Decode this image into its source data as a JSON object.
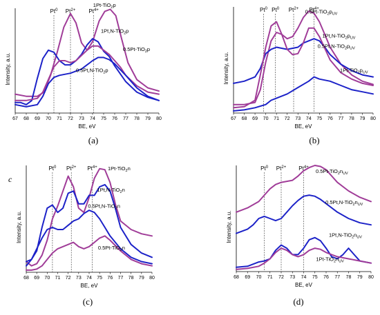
{
  "colors": {
    "magenta": "#a03c98",
    "blue": "#1c22c8"
  },
  "chart_data": [
    {
      "id": "a",
      "panel_label": "(a)",
      "corner_label": "",
      "type": "line",
      "xlabel": "BE, eV",
      "ylabel": "Intensity, a.u.",
      "xlim": [
        67,
        80
      ],
      "ylim": [
        0,
        1
      ],
      "x_reversed": false,
      "x_ticks": [
        "67",
        "68",
        "69",
        "70",
        "71",
        "72",
        "73",
        "74",
        "75",
        "76",
        "77",
        "78",
        "79",
        "80"
      ],
      "ref_lines": [
        {
          "label": "Pt0",
          "x": 70.5
        },
        {
          "label": "Pt2+",
          "x": 72.0
        },
        {
          "label": "Pt4+",
          "x": 74.1
        }
      ],
      "series": [
        {
          "name": "1Pt-TiO2p",
          "color": "magenta",
          "x": [
            67,
            68,
            69,
            69.6,
            70.2,
            70.8,
            71.4,
            72,
            72.5,
            73,
            73.5,
            74,
            74.6,
            75.1,
            75.6,
            76.1,
            76.6,
            77.2,
            78,
            79,
            80
          ],
          "y": [
            0.18,
            0.16,
            0.16,
            0.2,
            0.36,
            0.58,
            0.82,
            0.95,
            0.86,
            0.67,
            0.6,
            0.68,
            0.88,
            0.97,
            0.99,
            0.93,
            0.72,
            0.48,
            0.32,
            0.24,
            0.21
          ]
        },
        {
          "name": "1Pt,N-TiO2p",
          "color": "blue",
          "x": [
            67,
            67.5,
            68,
            68.5,
            69,
            69.5,
            70,
            70.5,
            71,
            71.5,
            72,
            72.5,
            73,
            73.5,
            74,
            74.5,
            75,
            75.5,
            76,
            77,
            78,
            79,
            80
          ],
          "y": [
            0.1,
            0.1,
            0.08,
            0.12,
            0.33,
            0.52,
            0.6,
            0.58,
            0.5,
            0.46,
            0.46,
            0.5,
            0.56,
            0.65,
            0.71,
            0.68,
            0.59,
            0.54,
            0.45,
            0.3,
            0.2,
            0.15,
            0.12
          ]
        },
        {
          "name": "0.5Pt-TiO2p",
          "color": "magenta",
          "x": [
            67,
            68,
            69,
            69.5,
            70,
            70.5,
            71,
            71.5,
            72,
            72.5,
            73,
            73.5,
            74,
            74.5,
            75,
            75.5,
            76,
            76.5,
            77,
            78,
            79,
            80
          ],
          "y": [
            0.12,
            0.12,
            0.14,
            0.2,
            0.32,
            0.44,
            0.5,
            0.5,
            0.48,
            0.5,
            0.55,
            0.6,
            0.64,
            0.64,
            0.6,
            0.56,
            0.5,
            0.44,
            0.36,
            0.26,
            0.2,
            0.18
          ]
        },
        {
          "name": "0.5Pt,N-TiO2p",
          "color": "blue",
          "x": [
            67,
            68,
            69,
            69.5,
            70,
            70.5,
            71,
            72,
            73,
            73.5,
            74,
            74.5,
            75,
            75.5,
            76,
            77,
            78,
            79,
            80
          ],
          "y": [
            0.08,
            0.06,
            0.08,
            0.16,
            0.28,
            0.34,
            0.36,
            0.38,
            0.42,
            0.46,
            0.5,
            0.53,
            0.53,
            0.51,
            0.47,
            0.36,
            0.24,
            0.16,
            0.12
          ]
        }
      ],
      "annotations": [
        {
          "text": "1Pt-TiO2p",
          "x": 76.3,
          "y": 1.0
        },
        {
          "text": "1Pt,N-TiO2p",
          "x": 76.5,
          "y": 0.78
        },
        {
          "text": "0.5Pt-TiO2p",
          "x": 77.0,
          "y": 0.62
        },
        {
          "text": "0.5Pt,N-TiO2p",
          "x": 75.0,
          "y": 0.43
        }
      ]
    },
    {
      "id": "b",
      "panel_label": "(b)",
      "corner_label": "",
      "type": "line",
      "xlabel": "BE, eV",
      "ylabel": "Intensity, a.u.",
      "xlim": [
        67,
        80
      ],
      "ylim": [
        0,
        1
      ],
      "x_reversed": false,
      "x_ticks": [
        "67",
        "68",
        "69",
        "70",
        "71",
        "72",
        "73",
        "74",
        "75",
        "76",
        "77",
        "78",
        "79",
        "80"
      ],
      "ref_lines": [
        {
          "label": "Pt0",
          "x": 69.8
        },
        {
          "label": "Pt0",
          "x": 70.9
        },
        {
          "label": "Pt2+",
          "x": 72.6
        },
        {
          "label": "Pt4+",
          "x": 74.5
        }
      ],
      "series": [
        {
          "name": "0.5Pt-TiO2pUV",
          "color": "magenta",
          "x": [
            67,
            68,
            69,
            69.5,
            70,
            70.5,
            71,
            71.5,
            72,
            72.5,
            73,
            73.5,
            74,
            74.5,
            75,
            75.5,
            76,
            77,
            78,
            79,
            80
          ],
          "y": [
            0.08,
            0.08,
            0.1,
            0.22,
            0.48,
            0.68,
            0.76,
            0.74,
            0.7,
            0.72,
            0.8,
            0.9,
            0.96,
            0.94,
            0.86,
            0.74,
            0.62,
            0.46,
            0.36,
            0.3,
            0.27
          ]
        },
        {
          "name": "1Pt,N-TiO2pUV",
          "color": "blue",
          "x": [
            67,
            68,
            69,
            69.5,
            70,
            70.5,
            71,
            72,
            73,
            73.5,
            74,
            74.5,
            75,
            75.5,
            76,
            77,
            78,
            79,
            80
          ],
          "y": [
            0.28,
            0.3,
            0.34,
            0.42,
            0.56,
            0.6,
            0.62,
            0.6,
            0.62,
            0.66,
            0.68,
            0.7,
            0.68,
            0.62,
            0.55,
            0.46,
            0.4,
            0.36,
            0.34
          ]
        },
        {
          "name": "0.5Pt,N-TiO2pUV",
          "color": "magenta",
          "x": [
            67,
            68,
            69,
            69.5,
            70,
            70.5,
            71,
            71.5,
            72,
            72.5,
            73,
            73.5,
            74,
            74.5,
            75,
            76,
            77,
            78,
            79,
            80
          ],
          "y": [
            0.05,
            0.06,
            0.12,
            0.36,
            0.62,
            0.82,
            0.86,
            0.74,
            0.6,
            0.55,
            0.56,
            0.66,
            0.8,
            0.8,
            0.72,
            0.5,
            0.38,
            0.32,
            0.28,
            0.26
          ]
        },
        {
          "name": "1Pt-TiO2pUV",
          "color": "blue",
          "x": [
            67,
            68,
            69,
            70,
            70.5,
            71,
            72,
            73,
            74,
            74.5,
            75,
            76,
            77,
            78,
            79,
            80
          ],
          "y": [
            0.02,
            0.03,
            0.05,
            0.08,
            0.12,
            0.14,
            0.18,
            0.24,
            0.3,
            0.34,
            0.32,
            0.3,
            0.26,
            0.22,
            0.2,
            0.18
          ]
        }
      ],
      "annotations": [
        {
          "text": "0.5Pt-TiO2pUV",
          "x": 75.6,
          "y": 0.95
        },
        {
          "text": "1Pt,N-TiO2pUV",
          "x": 76.3,
          "y": 0.71
        },
        {
          "text": "0.5Pt,N-TiO2pUV",
          "x": 76.5,
          "y": 0.64
        },
        {
          "text": "1Pt-TiO2pUV",
          "x": 77.3,
          "y": 0.4
        }
      ]
    },
    {
      "id": "c",
      "panel_label": "(c)",
      "corner_label": "c",
      "type": "line",
      "xlabel": "BE, eV",
      "ylabel": "Intensity, a.u.",
      "xlim": [
        68,
        80
      ],
      "ylim": [
        0,
        1
      ],
      "x_reversed": false,
      "x_ticks": [
        "68",
        "69",
        "70",
        "71",
        "72",
        "73",
        "74",
        "75",
        "76",
        "77",
        "78",
        "79",
        "80"
      ],
      "ref_lines": [
        {
          "label": "Pt0",
          "x": 70.5
        },
        {
          "label": "Pt2+",
          "x": 72.3
        },
        {
          "label": "Pt4+",
          "x": 74.3
        }
      ],
      "series": [
        {
          "name": "1Pt-TiO2n",
          "color": "magenta",
          "x": [
            68,
            68.5,
            69,
            69.5,
            70,
            70.5,
            71,
            71.5,
            72,
            72.5,
            73,
            73.5,
            74,
            74.5,
            75,
            75.5,
            76,
            76.5,
            77,
            78,
            79,
            80
          ],
          "y": [
            0.1,
            0.06,
            0.08,
            0.16,
            0.3,
            0.5,
            0.62,
            0.76,
            0.9,
            0.8,
            0.6,
            0.56,
            0.7,
            0.88,
            0.97,
            0.96,
            0.84,
            0.64,
            0.48,
            0.4,
            0.36,
            0.34
          ]
        },
        {
          "name": "1Pt,N-TiO2n",
          "color": "blue",
          "x": [
            68,
            68.5,
            69,
            69.5,
            70,
            70.5,
            71,
            71.5,
            72,
            72.5,
            73,
            73.5,
            74,
            74.5,
            75,
            75.5,
            76,
            76.5,
            77,
            78,
            79,
            80
          ],
          "y": [
            0.1,
            0.12,
            0.2,
            0.42,
            0.6,
            0.63,
            0.56,
            0.6,
            0.74,
            0.76,
            0.64,
            0.64,
            0.72,
            0.72,
            0.8,
            0.82,
            0.76,
            0.6,
            0.42,
            0.26,
            0.18,
            0.14
          ]
        },
        {
          "name": "0.5Pt,N-TiO2n",
          "color": "blue",
          "x": [
            68,
            68.5,
            69,
            69.5,
            70,
            70.5,
            71,
            71.5,
            72,
            72.5,
            73,
            73.5,
            74,
            74.5,
            75,
            75.5,
            76,
            77,
            78,
            79,
            80
          ],
          "y": [
            0.06,
            0.12,
            0.22,
            0.32,
            0.4,
            0.42,
            0.4,
            0.4,
            0.44,
            0.48,
            0.5,
            0.55,
            0.58,
            0.56,
            0.5,
            0.42,
            0.34,
            0.22,
            0.14,
            0.1,
            0.08
          ]
        },
        {
          "name": "0.5Pt-TiO2n",
          "color": "magenta",
          "x": [
            68,
            68.5,
            69,
            69.5,
            70,
            70.5,
            71,
            71.5,
            72,
            72.5,
            73,
            73.5,
            74,
            74.5,
            75,
            75.5,
            76,
            77,
            78,
            79,
            80
          ],
          "y": [
            0.02,
            0.02,
            0.03,
            0.06,
            0.12,
            0.18,
            0.22,
            0.24,
            0.26,
            0.28,
            0.24,
            0.22,
            0.24,
            0.28,
            0.32,
            0.34,
            0.3,
            0.2,
            0.12,
            0.08,
            0.06
          ]
        }
      ],
      "annotations": [
        {
          "text": "1Pt-TiO2n",
          "x": 76.7,
          "y": 0.98
        },
        {
          "text": "1Pt,N-TiO2n",
          "x": 76.6,
          "y": 0.78
        },
        {
          "text": "0.5Pt,N-TiO2n",
          "x": 76.0,
          "y": 0.63
        },
        {
          "text": "0.5Pt-TiO2n",
          "x": 75.9,
          "y": 0.24
        }
      ]
    },
    {
      "id": "d",
      "panel_label": "(d)",
      "corner_label": "",
      "type": "line",
      "xlabel": "BE, eV",
      "ylabel": "Intensity, a.u.",
      "xlim": [
        68,
        80
      ],
      "ylim": [
        0,
        1
      ],
      "x_reversed": false,
      "x_ticks": [
        "68",
        "69",
        "70",
        "71",
        "72",
        "73",
        "74",
        "75",
        "76",
        "77",
        "78",
        "79",
        "80"
      ],
      "ref_lines": [
        {
          "label": "Pt0",
          "x": 70.5
        },
        {
          "label": "Pt2+",
          "x": 72.0
        },
        {
          "label": "Pt4+",
          "x": 74.0
        }
      ],
      "series": [
        {
          "name": "0.5Pt-TiO2nUV",
          "color": "magenta",
          "x": [
            68,
            69,
            70,
            70.5,
            71,
            71.5,
            72,
            72.5,
            73,
            73.5,
            74,
            74.5,
            75,
            75.5,
            76,
            76.5,
            77,
            78,
            79,
            80
          ],
          "y": [
            0.56,
            0.6,
            0.66,
            0.72,
            0.78,
            0.82,
            0.84,
            0.85,
            0.86,
            0.9,
            0.95,
            0.98,
            1.0,
            0.99,
            0.96,
            0.9,
            0.84,
            0.76,
            0.7,
            0.66
          ]
        },
        {
          "name": "0.5Pt,N-TiO2nUV",
          "color": "blue",
          "x": [
            68,
            69,
            69.5,
            70,
            70.5,
            71,
            71.5,
            72,
            72.5,
            73,
            73.5,
            74,
            74.5,
            75,
            75.5,
            76,
            77,
            78,
            79,
            80
          ],
          "y": [
            0.36,
            0.4,
            0.44,
            0.5,
            0.52,
            0.5,
            0.48,
            0.5,
            0.56,
            0.62,
            0.67,
            0.71,
            0.72,
            0.71,
            0.68,
            0.64,
            0.56,
            0.5,
            0.46,
            0.44
          ]
        },
        {
          "name": "1Pt,N-TiO2nUV",
          "color": "blue",
          "x": [
            68,
            69,
            69.5,
            70,
            70.5,
            71,
            71.5,
            72,
            72.5,
            73,
            73.5,
            74,
            74.5,
            75,
            75.5,
            76,
            76.5,
            77,
            77.5,
            78,
            78.5,
            79,
            80
          ],
          "y": [
            0.04,
            0.05,
            0.07,
            0.09,
            0.1,
            0.12,
            0.2,
            0.25,
            0.22,
            0.16,
            0.16,
            0.22,
            0.3,
            0.32,
            0.29,
            0.22,
            0.14,
            0.12,
            0.16,
            0.22,
            0.16,
            0.1,
            0.08
          ]
        },
        {
          "name": "1Pt-TiO2nUV",
          "color": "magenta",
          "x": [
            68,
            69,
            70,
            70.5,
            71,
            71.5,
            72,
            72.5,
            73,
            73.5,
            74,
            74.5,
            75,
            75.5,
            76,
            76.5,
            77,
            78,
            79,
            80
          ],
          "y": [
            0.02,
            0.03,
            0.05,
            0.08,
            0.12,
            0.18,
            0.22,
            0.2,
            0.16,
            0.14,
            0.16,
            0.2,
            0.22,
            0.21,
            0.18,
            0.16,
            0.14,
            0.12,
            0.1,
            0.08
          ]
        }
      ],
      "annotations": [
        {
          "text": "0.5Pt-TiO2nUV",
          "x": 76.8,
          "y": 0.94
        },
        {
          "text": "0.5Pt,N-TiO2nUV",
          "x": 77.3,
          "y": 0.65
        },
        {
          "text": "1Pt,N-TiO2nUV",
          "x": 77.6,
          "y": 0.34
        },
        {
          "text": "1Pt-TiO2nUV",
          "x": 76.7,
          "y": 0.14
        }
      ]
    }
  ]
}
